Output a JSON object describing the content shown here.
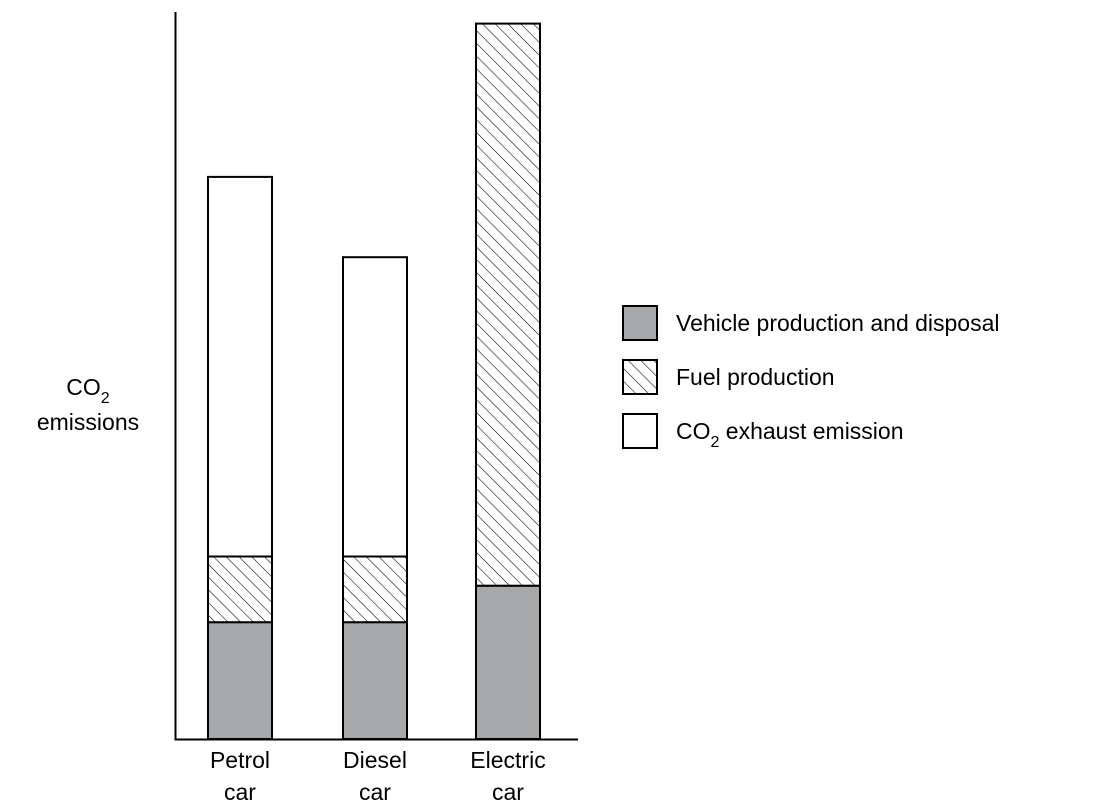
{
  "chart_data": {
    "type": "bar",
    "stacked": true,
    "title": "",
    "xlabel": "",
    "ylabel": "emissions",
    "ylabel_prefix": "CO",
    "ylabel_subscript": "2",
    "y_axis_ticks": false,
    "ylim": [
      0,
      100
    ],
    "categories": [
      {
        "line1": "Petrol",
        "line2": "car"
      },
      {
        "line1": "Diesel",
        "line2": "car"
      },
      {
        "line1": "Electric",
        "line2": "car"
      }
    ],
    "series": [
      {
        "name": "Vehicle production and disposal",
        "fill": "solid",
        "color": "#a7a8aa",
        "values": [
          16,
          16,
          21
        ]
      },
      {
        "name": "Fuel production",
        "fill": "hatch",
        "color": "#ffffff",
        "values": [
          9,
          9,
          77
        ]
      },
      {
        "name_prefix": "CO",
        "name_subscript": "2",
        "name": " exhaust emission",
        "fill": "white",
        "color": "#ffffff",
        "values": [
          52,
          41,
          0
        ]
      }
    ],
    "legend_position": "right",
    "grid": false
  }
}
